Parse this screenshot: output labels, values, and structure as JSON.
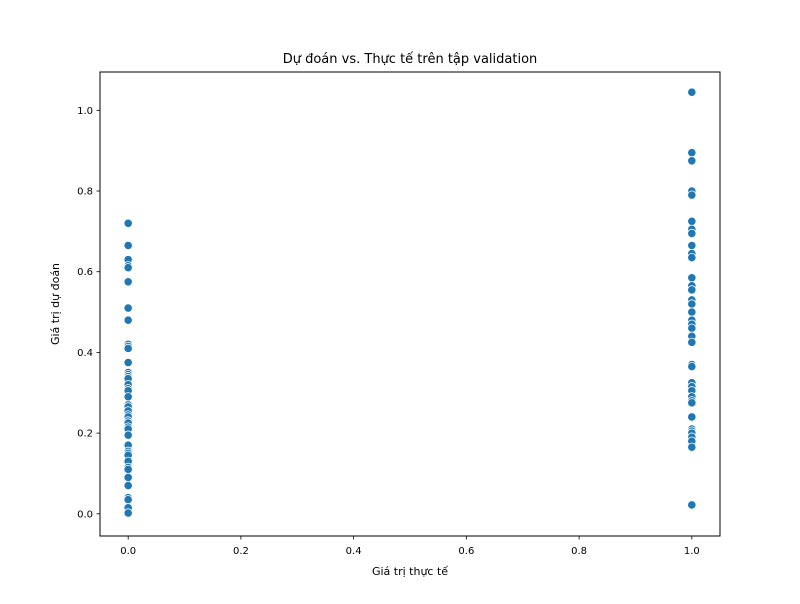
{
  "chart_data": {
    "type": "scatter",
    "title": "Dự đoán vs. Thực tế trên tập validation",
    "xlabel": "Giá trị thực tế",
    "ylabel": "Giá trị dự đoán",
    "xlim": [
      -0.05,
      1.05
    ],
    "ylim": [
      -0.055,
      1.095
    ],
    "xticks": [
      0.0,
      0.2,
      0.4,
      0.6,
      0.8,
      1.0
    ],
    "xtick_labels": [
      "0.0",
      "0.2",
      "0.4",
      "0.6",
      "0.8",
      "1.0"
    ],
    "yticks": [
      0.0,
      0.2,
      0.4,
      0.6,
      0.8,
      1.0
    ],
    "ytick_labels": [
      "0.0",
      "0.2",
      "0.4",
      "0.6",
      "0.8",
      "1.0"
    ],
    "grid": false,
    "marker_color": "#1f77b4",
    "marker_edge_color": "#ffffff",
    "points": [
      {
        "x": 0,
        "y": 0.72
      },
      {
        "x": 0,
        "y": 0.665
      },
      {
        "x": 0,
        "y": 0.63
      },
      {
        "x": 0,
        "y": 0.615
      },
      {
        "x": 0,
        "y": 0.61
      },
      {
        "x": 0,
        "y": 0.575
      },
      {
        "x": 0,
        "y": 0.51
      },
      {
        "x": 0,
        "y": 0.48
      },
      {
        "x": 0,
        "y": 0.42
      },
      {
        "x": 0,
        "y": 0.415
      },
      {
        "x": 0,
        "y": 0.41
      },
      {
        "x": 0,
        "y": 0.375
      },
      {
        "x": 0,
        "y": 0.35
      },
      {
        "x": 0,
        "y": 0.345
      },
      {
        "x": 0,
        "y": 0.34
      },
      {
        "x": 0,
        "y": 0.335
      },
      {
        "x": 0,
        "y": 0.32
      },
      {
        "x": 0,
        "y": 0.31
      },
      {
        "x": 0,
        "y": 0.305
      },
      {
        "x": 0,
        "y": 0.29
      },
      {
        "x": 0,
        "y": 0.27
      },
      {
        "x": 0,
        "y": 0.265
      },
      {
        "x": 0,
        "y": 0.255
      },
      {
        "x": 0,
        "y": 0.245
      },
      {
        "x": 0,
        "y": 0.24
      },
      {
        "x": 0,
        "y": 0.23
      },
      {
        "x": 0,
        "y": 0.225
      },
      {
        "x": 0,
        "y": 0.215
      },
      {
        "x": 0,
        "y": 0.21
      },
      {
        "x": 0,
        "y": 0.195
      },
      {
        "x": 0,
        "y": 0.17
      },
      {
        "x": 0,
        "y": 0.155
      },
      {
        "x": 0,
        "y": 0.15
      },
      {
        "x": 0,
        "y": 0.145
      },
      {
        "x": 0,
        "y": 0.13
      },
      {
        "x": 0,
        "y": 0.115
      },
      {
        "x": 0,
        "y": 0.11
      },
      {
        "x": 0,
        "y": 0.09
      },
      {
        "x": 0,
        "y": 0.07
      },
      {
        "x": 0,
        "y": 0.04
      },
      {
        "x": 0,
        "y": 0.035
      },
      {
        "x": 0,
        "y": 0.015
      },
      {
        "x": 0,
        "y": 0.002
      },
      {
        "x": 1,
        "y": 1.045
      },
      {
        "x": 1,
        "y": 0.895
      },
      {
        "x": 1,
        "y": 0.875
      },
      {
        "x": 1,
        "y": 0.8
      },
      {
        "x": 1,
        "y": 0.79
      },
      {
        "x": 1,
        "y": 0.725
      },
      {
        "x": 1,
        "y": 0.705
      },
      {
        "x": 1,
        "y": 0.695
      },
      {
        "x": 1,
        "y": 0.665
      },
      {
        "x": 1,
        "y": 0.645
      },
      {
        "x": 1,
        "y": 0.635
      },
      {
        "x": 1,
        "y": 0.585
      },
      {
        "x": 1,
        "y": 0.565
      },
      {
        "x": 1,
        "y": 0.555
      },
      {
        "x": 1,
        "y": 0.53
      },
      {
        "x": 1,
        "y": 0.52
      },
      {
        "x": 1,
        "y": 0.5
      },
      {
        "x": 1,
        "y": 0.48
      },
      {
        "x": 1,
        "y": 0.47
      },
      {
        "x": 1,
        "y": 0.46
      },
      {
        "x": 1,
        "y": 0.44
      },
      {
        "x": 1,
        "y": 0.425
      },
      {
        "x": 1,
        "y": 0.37
      },
      {
        "x": 1,
        "y": 0.365
      },
      {
        "x": 1,
        "y": 0.325
      },
      {
        "x": 1,
        "y": 0.315
      },
      {
        "x": 1,
        "y": 0.305
      },
      {
        "x": 1,
        "y": 0.29
      },
      {
        "x": 1,
        "y": 0.28
      },
      {
        "x": 1,
        "y": 0.275
      },
      {
        "x": 1,
        "y": 0.24
      },
      {
        "x": 1,
        "y": 0.21
      },
      {
        "x": 1,
        "y": 0.205
      },
      {
        "x": 1,
        "y": 0.2
      },
      {
        "x": 1,
        "y": 0.19
      },
      {
        "x": 1,
        "y": 0.18
      },
      {
        "x": 1,
        "y": 0.165
      },
      {
        "x": 1,
        "y": 0.022
      }
    ]
  }
}
